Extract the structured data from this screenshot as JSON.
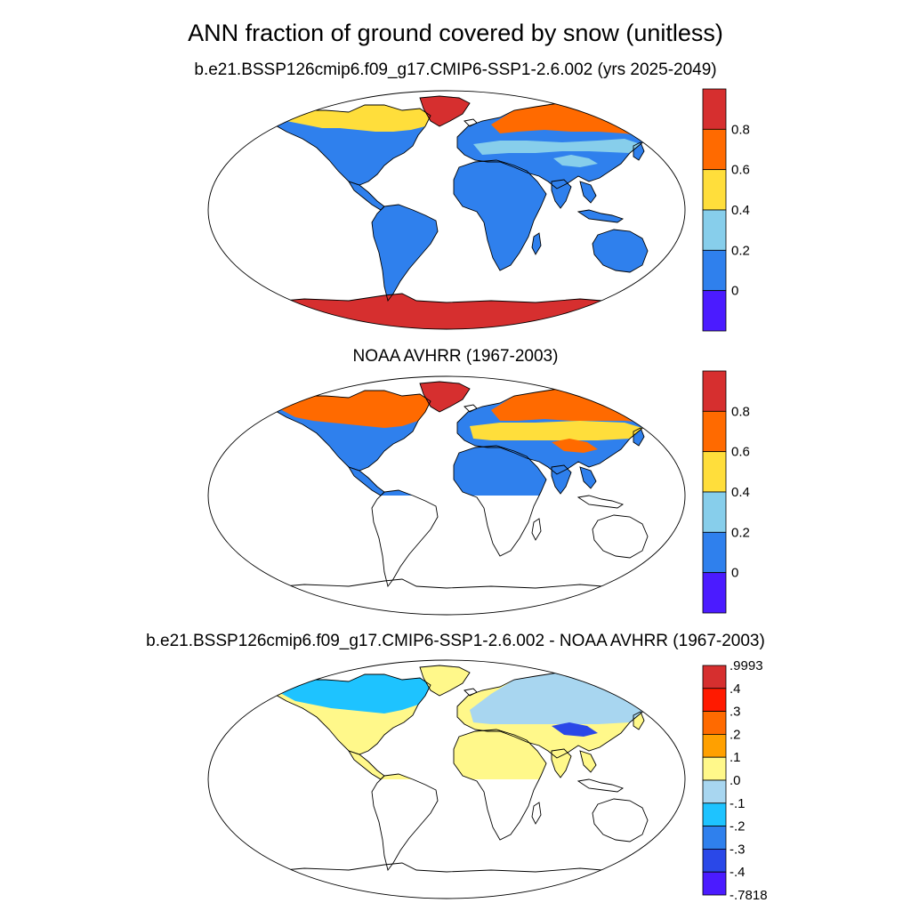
{
  "title": "ANN fraction of ground covered by snow (unitless)",
  "chart_data": [
    {
      "type": "heatmap",
      "title": "b.e21.BSSP126cmip6.f09_g17.CMIP6-SSP1-2.6.002 (yrs 2025-2049)",
      "colorbar": {
        "labels": [
          "0.8",
          "0.6",
          "0.4",
          "0.2",
          "0"
        ],
        "bins": [
          "#d62f2f",
          "#ff6a00",
          "#ffde3b",
          "#87ceeb",
          "#2f80ed",
          "#4b1bff"
        ]
      },
      "regions": [
        {
          "name": "Greenland",
          "value": 0.95
        },
        {
          "name": "Antarctica",
          "value": 0.95
        },
        {
          "name": "Siberia / northern Eurasia",
          "value": 0.7
        },
        {
          "name": "Northern North America",
          "value": 0.5
        },
        {
          "name": "Central Eurasia",
          "value": 0.3
        },
        {
          "name": "Tibetan Plateau",
          "value": 0.3
        },
        {
          "name": "Temperate & tropical land",
          "value": 0.1
        }
      ]
    },
    {
      "type": "heatmap",
      "title": "NOAA AVHRR (1967-2003)",
      "colorbar": {
        "labels": [
          "0.8",
          "0.6",
          "0.4",
          "0.2",
          "0"
        ],
        "bins": [
          "#d62f2f",
          "#ff6a00",
          "#ffde3b",
          "#87ceeb",
          "#2f80ed",
          "#4b1bff"
        ]
      },
      "regions": [
        {
          "name": "Greenland",
          "value": 0.95
        },
        {
          "name": "Northern North America",
          "value": 0.7
        },
        {
          "name": "Siberia / northern Eurasia",
          "value": 0.7
        },
        {
          "name": "Central Eurasia",
          "value": 0.5
        },
        {
          "name": "Tibetan Plateau",
          "value": 0.7
        },
        {
          "name": "Northern Hemisphere low latitudes",
          "value": 0.1
        }
      ]
    },
    {
      "type": "heatmap",
      "title": "b.e21.BSSP126cmip6.f09_g17.CMIP6-SSP1-2.6.002 - NOAA AVHRR (1967-2003)",
      "colorbar": {
        "labels": [
          ".9993",
          ".4",
          ".3",
          ".2",
          ".1",
          ".0",
          "-.1",
          "-.2",
          "-.3",
          "-.4",
          "-.7818"
        ],
        "bins": [
          "#d62f2f",
          "#ff1a00",
          "#ff6a00",
          "#ffa000",
          "#fff88a",
          "#a8d6f0",
          "#1ec3ff",
          "#2f80ed",
          "#2a48e8",
          "#4b1bff"
        ]
      },
      "regions": [
        {
          "name": "Greenland",
          "value": 0.0
        },
        {
          "name": "Northern North America",
          "value": -0.15
        },
        {
          "name": "Siberia / northern Eurasia",
          "value": -0.05
        },
        {
          "name": "Tibetan Plateau",
          "value": -0.35
        },
        {
          "name": "Tropical land",
          "value": 0.05
        }
      ]
    }
  ]
}
